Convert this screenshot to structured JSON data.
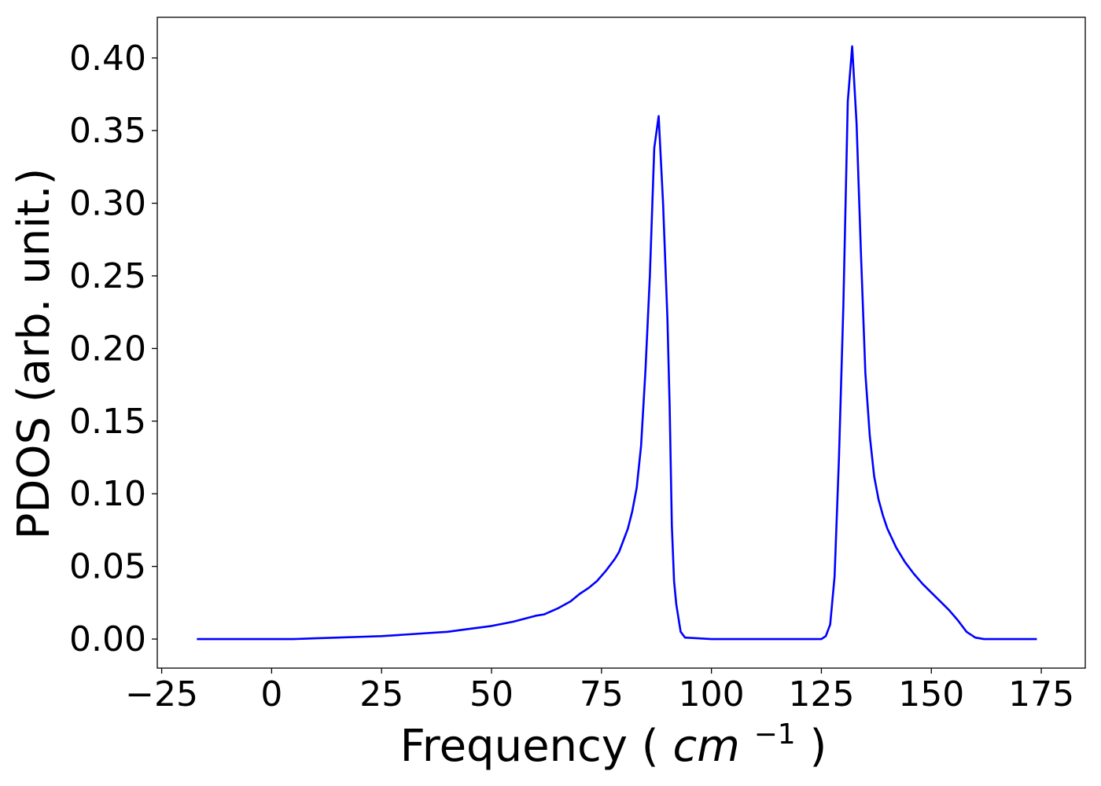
{
  "chart_data": {
    "type": "line",
    "title": "",
    "xlabel": "Frequency",
    "xlabel_unit_base": "cm",
    "xlabel_unit_exp": "−1",
    "ylabel": "PDOS (arb. unit.)",
    "xlim": [
      -26,
      185
    ],
    "ylim": [
      -0.02,
      0.428
    ],
    "xticks": [
      -25,
      0,
      25,
      50,
      75,
      100,
      125,
      150,
      175
    ],
    "xtick_labels": [
      "−25",
      "0",
      "25",
      "50",
      "75",
      "100",
      "125",
      "150",
      "175"
    ],
    "yticks": [
      0.0,
      0.05,
      0.1,
      0.15,
      0.2,
      0.25,
      0.3,
      0.35,
      0.4
    ],
    "ytick_labels": [
      "0.00",
      "0.05",
      "0.10",
      "0.15",
      "0.20",
      "0.25",
      "0.30",
      "0.35",
      "0.40"
    ],
    "grid": false,
    "legend": "none",
    "series": [
      {
        "color": "#0000ff",
        "x": [
          -17,
          0,
          5,
          10,
          15,
          20,
          25,
          30,
          35,
          40,
          45,
          50,
          55,
          60,
          62,
          65,
          68,
          70,
          72,
          74,
          76,
          78,
          79,
          80,
          81,
          82,
          83,
          84,
          85,
          86,
          87,
          88,
          89,
          90,
          90.5,
          91,
          91.5,
          92,
          93,
          94,
          100,
          110,
          120,
          125,
          126,
          127,
          128,
          129,
          130,
          131,
          132,
          133,
          134,
          135,
          136,
          137,
          138,
          139,
          140,
          142,
          144,
          146,
          148,
          150,
          152,
          154,
          156,
          158,
          160,
          162,
          165,
          170,
          174
        ],
        "y": [
          0,
          0,
          0,
          0.0005,
          0.001,
          0.0015,
          0.002,
          0.003,
          0.004,
          0.005,
          0.007,
          0.009,
          0.012,
          0.016,
          0.017,
          0.021,
          0.026,
          0.031,
          0.035,
          0.04,
          0.047,
          0.055,
          0.06,
          0.068,
          0.076,
          0.088,
          0.104,
          0.133,
          0.185,
          0.25,
          0.338,
          0.36,
          0.3,
          0.22,
          0.16,
          0.078,
          0.04,
          0.024,
          0.005,
          0.001,
          0,
          0,
          0,
          0,
          0.002,
          0.01,
          0.043,
          0.125,
          0.23,
          0.37,
          0.408,
          0.355,
          0.265,
          0.183,
          0.14,
          0.112,
          0.096,
          0.085,
          0.076,
          0.063,
          0.053,
          0.045,
          0.038,
          0.032,
          0.026,
          0.02,
          0.013,
          0.005,
          0.001,
          0,
          0,
          0,
          0
        ]
      }
    ]
  }
}
